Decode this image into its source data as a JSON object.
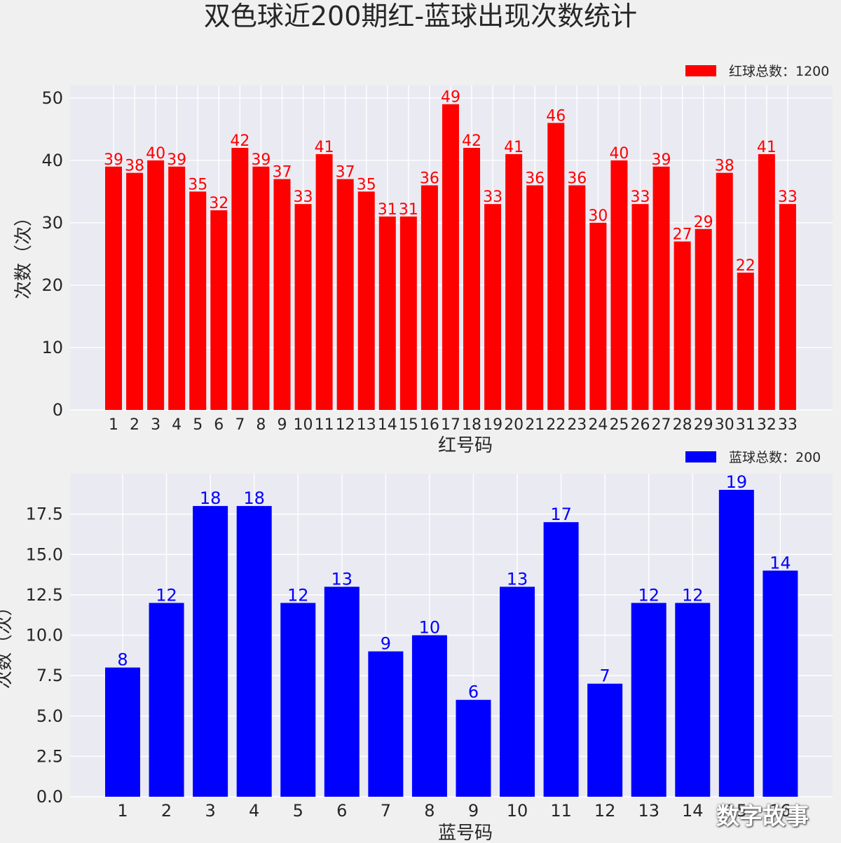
{
  "title": "双色球近200期红-蓝球出现次数统计",
  "watermark": "数字故事",
  "chart_data": [
    {
      "type": "bar",
      "categories": [
        "1",
        "2",
        "3",
        "4",
        "5",
        "6",
        "7",
        "8",
        "9",
        "10",
        "11",
        "12",
        "13",
        "14",
        "15",
        "16",
        "17",
        "18",
        "19",
        "20",
        "21",
        "22",
        "23",
        "24",
        "25",
        "26",
        "27",
        "28",
        "29",
        "30",
        "31",
        "32",
        "33"
      ],
      "series": [
        {
          "name": "红球总数：1200",
          "values": [
            39,
            38,
            40,
            39,
            35,
            32,
            42,
            39,
            37,
            33,
            41,
            37,
            35,
            31,
            31,
            36,
            49,
            42,
            33,
            41,
            36,
            46,
            36,
            30,
            40,
            33,
            39,
            27,
            29,
            38,
            22,
            41,
            33
          ]
        }
      ],
      "color": "#ff0000",
      "xlabel": "红号码",
      "ylabel": "次数（次）",
      "ylim": [
        0,
        52
      ],
      "yticks": [
        "0",
        "10",
        "20",
        "30",
        "40",
        "50"
      ],
      "grid": true,
      "legend": "top-right"
    },
    {
      "type": "bar",
      "categories": [
        "1",
        "2",
        "3",
        "4",
        "5",
        "6",
        "7",
        "8",
        "9",
        "10",
        "11",
        "12",
        "13",
        "14",
        "15",
        "16"
      ],
      "series": [
        {
          "name": "蓝球总数：200",
          "values": [
            8,
            12,
            18,
            18,
            12,
            13,
            9,
            10,
            6,
            13,
            17,
            7,
            12,
            12,
            19,
            14
          ]
        }
      ],
      "color": "#0000ff",
      "xlabel": "蓝号码",
      "ylabel": "次数（次）",
      "ylim": [
        0,
        20
      ],
      "yticks": [
        "0.0",
        "2.5",
        "5.0",
        "7.5",
        "10.0",
        "12.5",
        "15.0",
        "17.5"
      ],
      "grid": true,
      "legend": "top-right"
    }
  ]
}
